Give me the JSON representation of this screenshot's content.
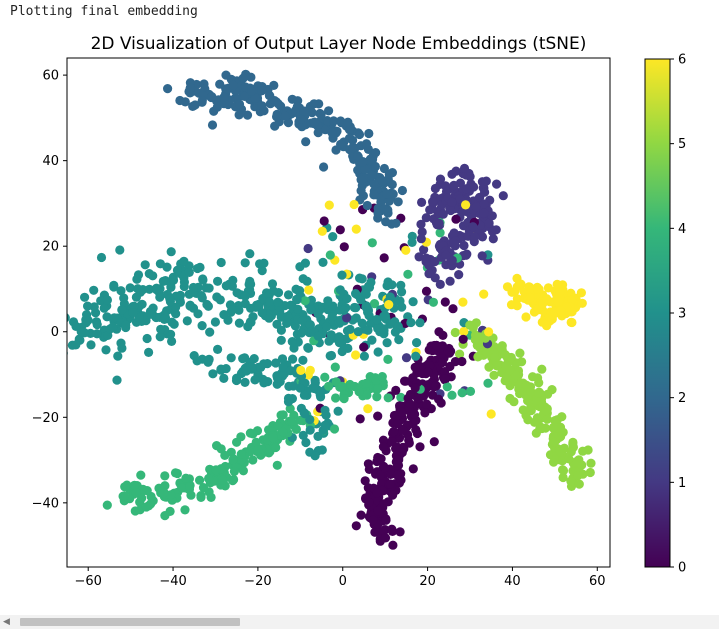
{
  "output": {
    "text": "Plotting final embedding"
  },
  "chart_data": {
    "type": "scatter",
    "title": "2D Visualization of Output Layer Node Embeddings (tSNE)",
    "xlabel": "",
    "ylabel": "",
    "xlim": [
      -65,
      63
    ],
    "ylim": [
      -55,
      64
    ],
    "xticks": [
      -60,
      -40,
      -20,
      0,
      20,
      40,
      60
    ],
    "yticks": [
      -40,
      -20,
      0,
      20,
      40,
      60
    ],
    "grid": false,
    "colormap": "viridis",
    "colorbar": {
      "ticks": [
        0,
        1,
        2,
        3,
        4,
        5,
        6
      ],
      "range": [
        0,
        6
      ],
      "position": "right"
    },
    "clusters": [
      {
        "class": 2,
        "count": 260,
        "path": [
          [
            -37,
            55
          ],
          [
            -27,
            57
          ],
          [
            -17,
            53
          ],
          [
            -7,
            50
          ],
          [
            2,
            45
          ],
          [
            8,
            36
          ],
          [
            10,
            28
          ]
        ],
        "spread": 2.0
      },
      {
        "class": 1,
        "count": 170,
        "path": [
          [
            20,
            25
          ],
          [
            24,
            30
          ],
          [
            28,
            33
          ],
          [
            32,
            32
          ],
          [
            31,
            23
          ],
          [
            26,
            18
          ],
          [
            22,
            16
          ]
        ],
        "spread": 2.6
      },
      {
        "class": 3,
        "count": 420,
        "path": [
          [
            -60,
            2
          ],
          [
            -50,
            5
          ],
          [
            -40,
            10
          ],
          [
            -28,
            8
          ],
          [
            -15,
            6
          ],
          [
            -5,
            2
          ],
          [
            5,
            4
          ],
          [
            14,
            2
          ]
        ],
        "spread": 4.5
      },
      {
        "class": 3,
        "count": 100,
        "path": [
          [
            -35,
            -5
          ],
          [
            -25,
            -9
          ],
          [
            -15,
            -10
          ],
          [
            -8,
            -13
          ],
          [
            -4,
            -20
          ],
          [
            -8,
            -25
          ]
        ],
        "spread": 2.5
      },
      {
        "class": 4,
        "count": 170,
        "path": [
          [
            -53,
            -38
          ],
          [
            -43,
            -39
          ],
          [
            -33,
            -35
          ],
          [
            -25,
            -30
          ],
          [
            -17,
            -25
          ],
          [
            -11,
            -22
          ]
        ],
        "spread": 2.0
      },
      {
        "class": 4,
        "count": 40,
        "path": [
          [
            -3,
            -13
          ],
          [
            5,
            -13
          ],
          [
            11,
            -12
          ]
        ],
        "spread": 1.5
      },
      {
        "class": 0,
        "count": 250,
        "path": [
          [
            8,
            -49
          ],
          [
            9,
            -40
          ],
          [
            11,
            -32
          ],
          [
            15,
            -22
          ],
          [
            18,
            -14
          ],
          [
            22,
            -8
          ],
          [
            24,
            -4
          ]
        ],
        "spread": 2.2
      },
      {
        "class": 5,
        "count": 200,
        "path": [
          [
            30,
            -1
          ],
          [
            36,
            -5
          ],
          [
            40,
            -10
          ],
          [
            45,
            -15
          ],
          [
            49,
            -22
          ],
          [
            53,
            -28
          ],
          [
            55,
            -34
          ]
        ],
        "spread": 2.0
      },
      {
        "class": 6,
        "count": 110,
        "path": [
          [
            40,
            10
          ],
          [
            44,
            8
          ],
          [
            48,
            8
          ],
          [
            53,
            9
          ],
          [
            52,
            5
          ],
          [
            45,
            4
          ]
        ],
        "spread": 1.6
      }
    ],
    "noise_points": 120
  }
}
